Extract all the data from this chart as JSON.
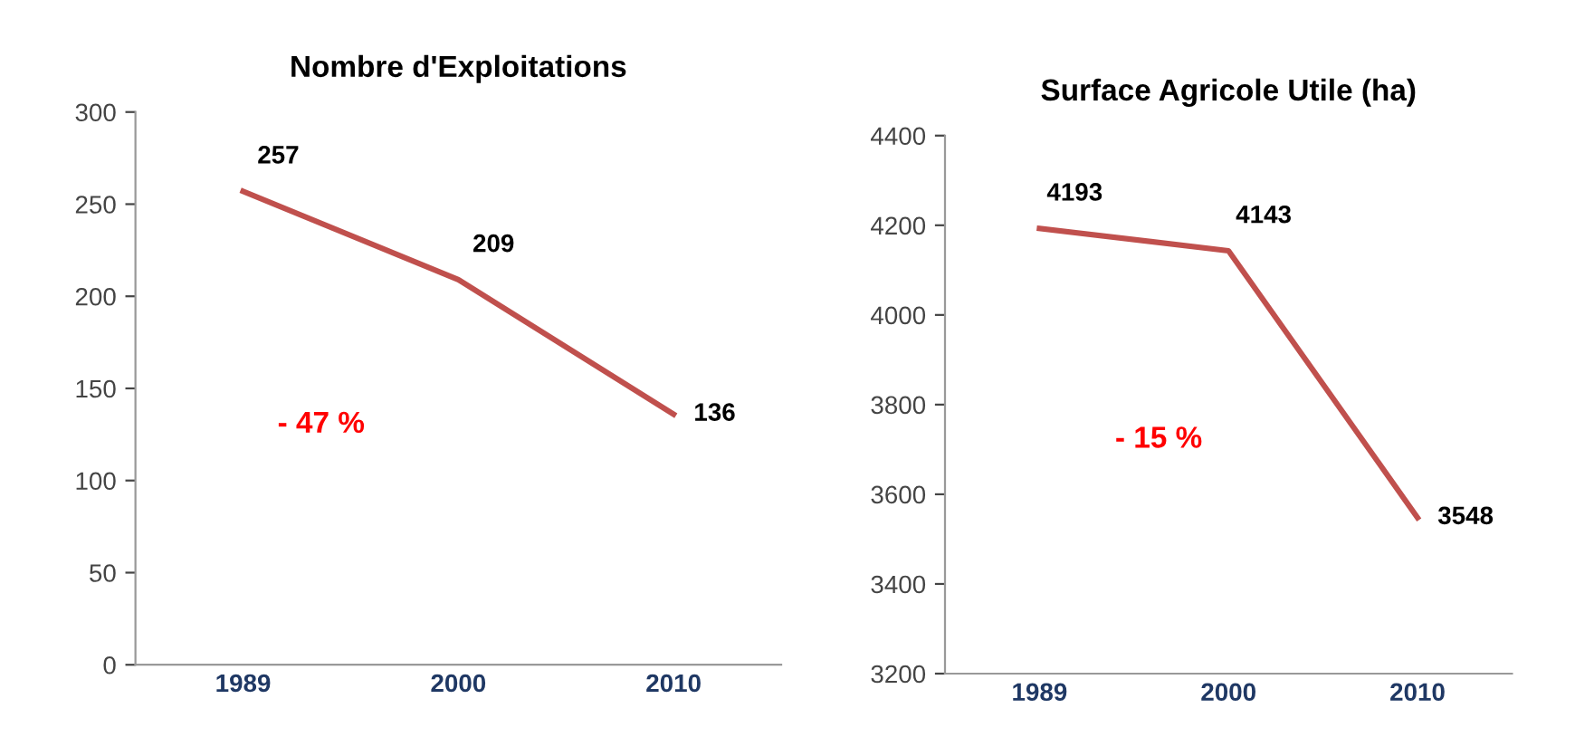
{
  "chart_data": [
    {
      "type": "line",
      "title": "Nombre d'Exploitations",
      "categories": [
        "1989",
        "2000",
        "2010"
      ],
      "series": [
        {
          "color": "#c0504d",
          "values": [
            257,
            209,
            136
          ]
        }
      ],
      "ylim": [
        0,
        300
      ],
      "yticks": [
        0,
        50,
        100,
        150,
        200,
        250,
        300
      ],
      "data_labels": true,
      "grid": false,
      "legend": false,
      "marker": "none",
      "annotations": [
        "- 47 %"
      ]
    },
    {
      "type": "line",
      "title": "Surface Agricole Utile (ha)",
      "categories": [
        "1989",
        "2000",
        "2010"
      ],
      "series": [
        {
          "color": "#c0504d",
          "values": [
            4193,
            4143,
            3548
          ]
        }
      ],
      "ylim": [
        3200,
        4400
      ],
      "yticks": [
        3200,
        3400,
        3600,
        3800,
        4000,
        4200,
        4400
      ],
      "data_labels": true,
      "grid": false,
      "legend": false,
      "marker": "none",
      "annotations": [
        "- 15 %"
      ]
    }
  ]
}
